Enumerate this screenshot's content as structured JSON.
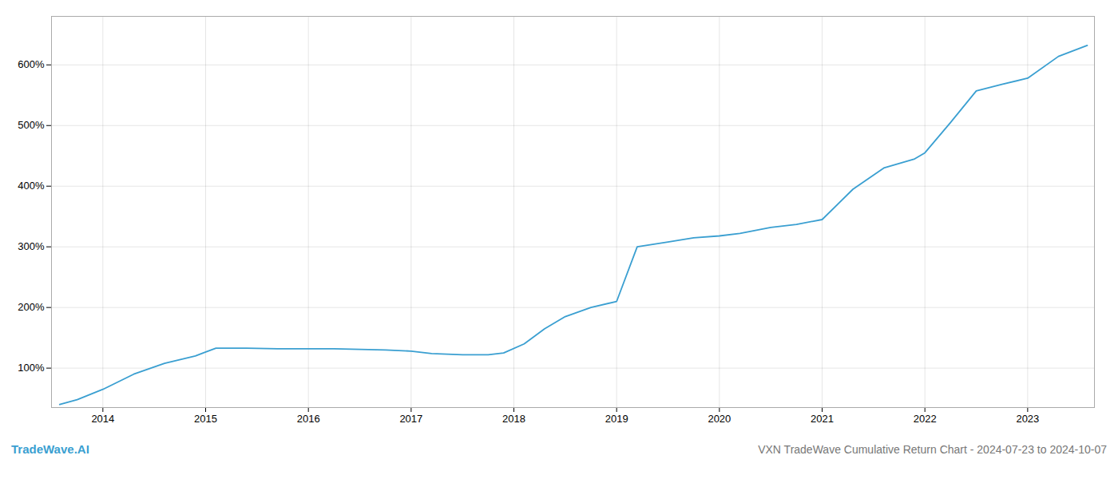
{
  "chart_data": {
    "type": "line",
    "title": "VXN TradeWave Cumulative Return Chart - 2024-07-23 to 2024-10-07",
    "annotations": [
      {
        "text": "TradeWave.AI"
      }
    ],
    "color": "#3a9fd1",
    "x": [
      2013.58,
      2013.75,
      2014.0,
      2014.3,
      2014.6,
      2014.9,
      2015.1,
      2015.4,
      2015.7,
      2016.0,
      2016.25,
      2016.5,
      2016.75,
      2017.0,
      2017.2,
      2017.5,
      2017.75,
      2017.9,
      2018.1,
      2018.3,
      2018.5,
      2018.75,
      2019.0,
      2019.2,
      2019.5,
      2019.75,
      2020.0,
      2020.2,
      2020.5,
      2020.75,
      2021.0,
      2021.3,
      2021.6,
      2021.9,
      2022.0,
      2022.25,
      2022.5,
      2022.75,
      2023.0,
      2023.3,
      2023.58
    ],
    "values": [
      40,
      48,
      65,
      90,
      108,
      120,
      133,
      133,
      132,
      132,
      132,
      131,
      130,
      128,
      124,
      122,
      122,
      125,
      140,
      165,
      185,
      200,
      210,
      300,
      308,
      315,
      318,
      322,
      332,
      337,
      345,
      395,
      430,
      445,
      455,
      505,
      557,
      568,
      578,
      614,
      632
    ],
    "xlim": [
      2013.5,
      2023.65
    ],
    "ylim": [
      35,
      680
    ],
    "xticks": [
      2014,
      2015,
      2016,
      2017,
      2018,
      2019,
      2020,
      2021,
      2022,
      2023
    ],
    "yticks": [
      {
        "value": 100,
        "label": "100%"
      },
      {
        "value": 200,
        "label": "200%"
      },
      {
        "value": 300,
        "label": "300%"
      },
      {
        "value": 400,
        "label": "400%"
      },
      {
        "value": 500,
        "label": "500%"
      },
      {
        "value": 600,
        "label": "600%"
      }
    ],
    "grid": true
  }
}
